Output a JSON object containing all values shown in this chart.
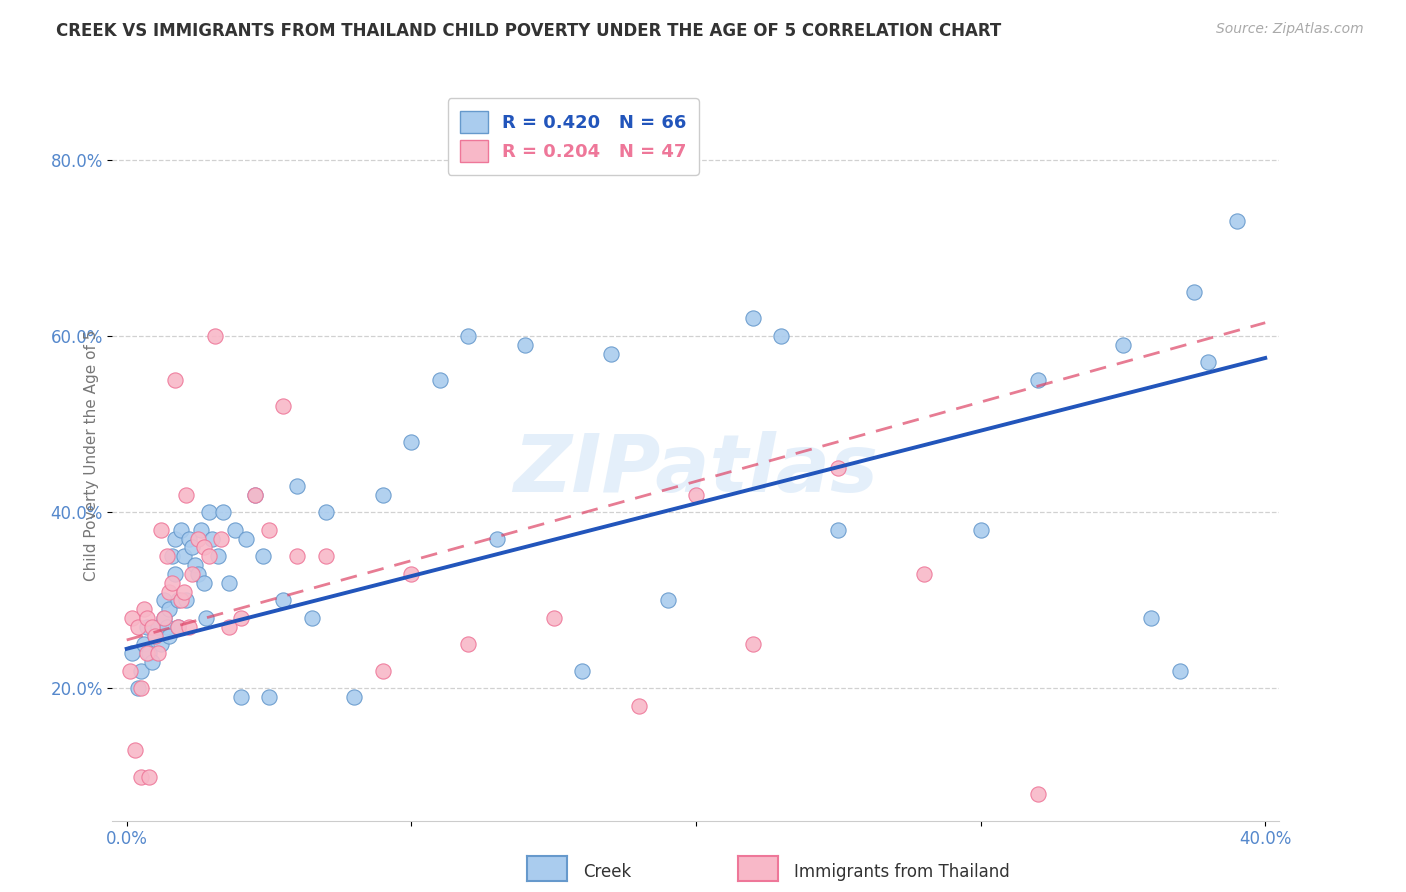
{
  "title": "CREEK VS IMMIGRANTS FROM THAILAND CHILD POVERTY UNDER THE AGE OF 5 CORRELATION CHART",
  "source": "Source: ZipAtlas.com",
  "ylabel": "Child Poverty Under the Age of 5",
  "xlabel_creek": "Creek",
  "xlabel_thailand": "Immigrants from Thailand",
  "xlim": [
    -0.005,
    0.405
  ],
  "ylim": [
    0.05,
    0.88
  ],
  "x_ticks": [
    0.0,
    0.1,
    0.2,
    0.3,
    0.4
  ],
  "x_tick_labels_bottom": [
    "0.0%",
    "",
    "",
    "",
    "40.0%"
  ],
  "y_ticks": [
    0.2,
    0.4,
    0.6,
    0.8
  ],
  "y_tick_labels": [
    "20.0%",
    "40.0%",
    "60.0%",
    "80.0%"
  ],
  "creek_color": "#aaccee",
  "creek_edge_color": "#6699cc",
  "thailand_color": "#f8b8c8",
  "thailand_edge_color": "#ee7799",
  "creek_line_color": "#2255bb",
  "thailand_line_color": "#dd4466",
  "thailand_line_color2": "#bbbbbb",
  "watermark": "ZIPatlas",
  "legend_r_creek": "R = 0.420",
  "legend_n_creek": "N = 66",
  "legend_r_thailand": "R = 0.204",
  "legend_n_thailand": "N = 47",
  "creek_scatter_x": [
    0.002,
    0.004,
    0.005,
    0.006,
    0.007,
    0.008,
    0.009,
    0.01,
    0.011,
    0.012,
    0.013,
    0.013,
    0.014,
    0.015,
    0.015,
    0.016,
    0.017,
    0.017,
    0.018,
    0.018,
    0.019,
    0.02,
    0.021,
    0.022,
    0.023,
    0.024,
    0.025,
    0.026,
    0.027,
    0.028,
    0.029,
    0.03,
    0.032,
    0.034,
    0.036,
    0.038,
    0.04,
    0.042,
    0.045,
    0.048,
    0.05,
    0.055,
    0.06,
    0.065,
    0.07,
    0.08,
    0.09,
    0.1,
    0.11,
    0.12,
    0.13,
    0.14,
    0.16,
    0.17,
    0.19,
    0.22,
    0.23,
    0.25,
    0.3,
    0.32,
    0.35,
    0.36,
    0.37,
    0.375,
    0.38,
    0.39
  ],
  "creek_scatter_y": [
    0.24,
    0.2,
    0.22,
    0.25,
    0.27,
    0.24,
    0.23,
    0.26,
    0.27,
    0.25,
    0.28,
    0.3,
    0.27,
    0.26,
    0.29,
    0.35,
    0.33,
    0.37,
    0.27,
    0.3,
    0.38,
    0.35,
    0.3,
    0.37,
    0.36,
    0.34,
    0.33,
    0.38,
    0.32,
    0.28,
    0.4,
    0.37,
    0.35,
    0.4,
    0.32,
    0.38,
    0.19,
    0.37,
    0.42,
    0.35,
    0.19,
    0.3,
    0.43,
    0.28,
    0.4,
    0.19,
    0.42,
    0.48,
    0.55,
    0.6,
    0.37,
    0.59,
    0.22,
    0.58,
    0.3,
    0.62,
    0.6,
    0.38,
    0.38,
    0.55,
    0.59,
    0.28,
    0.22,
    0.65,
    0.57,
    0.73
  ],
  "thailand_scatter_x": [
    0.001,
    0.002,
    0.003,
    0.004,
    0.005,
    0.005,
    0.006,
    0.007,
    0.007,
    0.008,
    0.009,
    0.01,
    0.011,
    0.012,
    0.013,
    0.014,
    0.015,
    0.016,
    0.017,
    0.018,
    0.019,
    0.02,
    0.021,
    0.022,
    0.023,
    0.025,
    0.027,
    0.029,
    0.031,
    0.033,
    0.036,
    0.04,
    0.045,
    0.05,
    0.055,
    0.06,
    0.07,
    0.09,
    0.1,
    0.12,
    0.15,
    0.18,
    0.2,
    0.22,
    0.25,
    0.28,
    0.32
  ],
  "thailand_scatter_y": [
    0.22,
    0.28,
    0.13,
    0.27,
    0.2,
    0.1,
    0.29,
    0.24,
    0.28,
    0.1,
    0.27,
    0.26,
    0.24,
    0.38,
    0.28,
    0.35,
    0.31,
    0.32,
    0.55,
    0.27,
    0.3,
    0.31,
    0.42,
    0.27,
    0.33,
    0.37,
    0.36,
    0.35,
    0.6,
    0.37,
    0.27,
    0.28,
    0.42,
    0.38,
    0.52,
    0.35,
    0.35,
    0.22,
    0.33,
    0.25,
    0.28,
    0.18,
    0.42,
    0.25,
    0.45,
    0.33,
    0.08
  ],
  "creek_trend_x": [
    0.0,
    0.4
  ],
  "creek_trend_y": [
    0.245,
    0.575
  ],
  "thailand_trend_x": [
    0.0,
    0.4
  ],
  "thailand_trend_y": [
    0.255,
    0.615
  ],
  "background_color": "#ffffff",
  "grid_color": "#cccccc",
  "title_color": "#333333",
  "tick_color": "#5588cc"
}
